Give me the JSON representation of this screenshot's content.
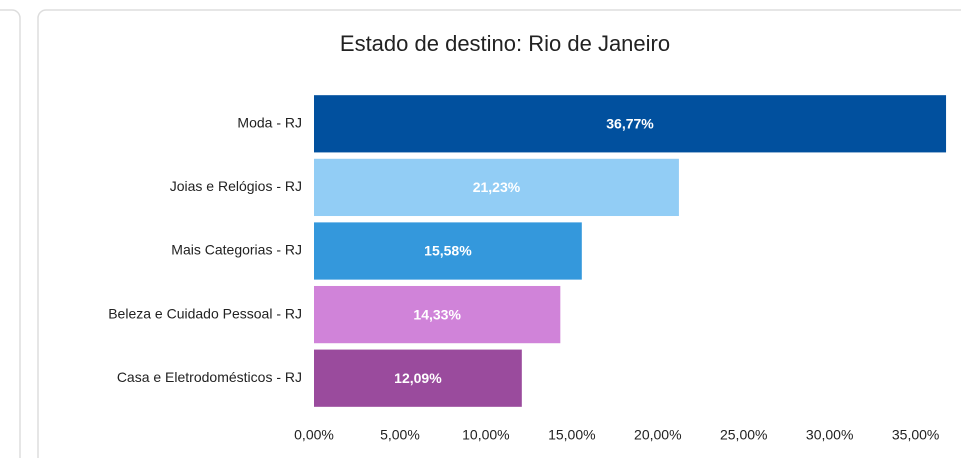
{
  "chart_data": {
    "type": "barh",
    "title": "Estado de destino: Rio de Janeiro",
    "categories": [
      "Moda - RJ",
      "Joias e Relógios - RJ",
      "Mais Categorias - RJ",
      "Beleza e Cuidado Pessoal - RJ",
      "Casa e Eletrodomésticos - RJ"
    ],
    "values": [
      36.77,
      21.23,
      15.58,
      14.33,
      12.09
    ],
    "value_labels": [
      "36,77%",
      "21,23%",
      "15,58%",
      "14,33%",
      "12,09%"
    ],
    "colors": [
      "#01509e",
      "#92cdf5",
      "#3498dc",
      "#d083d9",
      "#9a4b9d"
    ],
    "xlim": [
      0,
      37
    ],
    "xticks": [
      {
        "value": 0,
        "label": "0,00%"
      },
      {
        "value": 5,
        "label": "5,00%"
      },
      {
        "value": 10,
        "label": "10,00%"
      },
      {
        "value": 15,
        "label": "15,00%"
      },
      {
        "value": 20,
        "label": "20,00%"
      },
      {
        "value": 25,
        "label": "25,00%"
      },
      {
        "value": 30,
        "label": "30,00%"
      },
      {
        "value": 35,
        "label": "35,00%"
      }
    ]
  }
}
